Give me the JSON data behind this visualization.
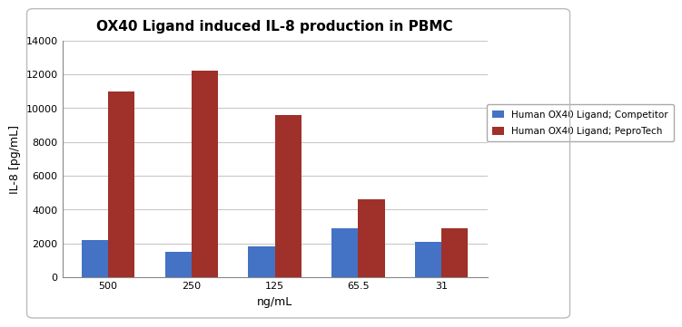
{
  "title": "OX40 Ligand induced IL-8 production in PBMC",
  "xlabel": "ng/mL",
  "ylabel": "IL-8 [pg/mL]",
  "categories": [
    "500",
    "250",
    "125",
    "65.5",
    "31"
  ],
  "competitor_values": [
    2200,
    1500,
    1800,
    2900,
    2100
  ],
  "peprotech_values": [
    11000,
    12200,
    9600,
    4600,
    2900
  ],
  "competitor_color": "#4472C4",
  "peprotech_color": "#A0302A",
  "legend_labels": [
    "Human OX40 Ligand; Competitor",
    "Human OX40 Ligand; PeproTech"
  ],
  "ylim": [
    0,
    14000
  ],
  "yticks": [
    0,
    2000,
    4000,
    6000,
    8000,
    10000,
    12000,
    14000
  ],
  "title_fontsize": 11,
  "axis_label_fontsize": 9,
  "tick_fontsize": 8,
  "legend_fontsize": 7.5,
  "bar_width": 0.32,
  "figure_bg": "#FFFFFF",
  "plot_bg": "#FFFFFF",
  "grid_color": "#C8C8C8",
  "frame_color": "#AAAAAA"
}
